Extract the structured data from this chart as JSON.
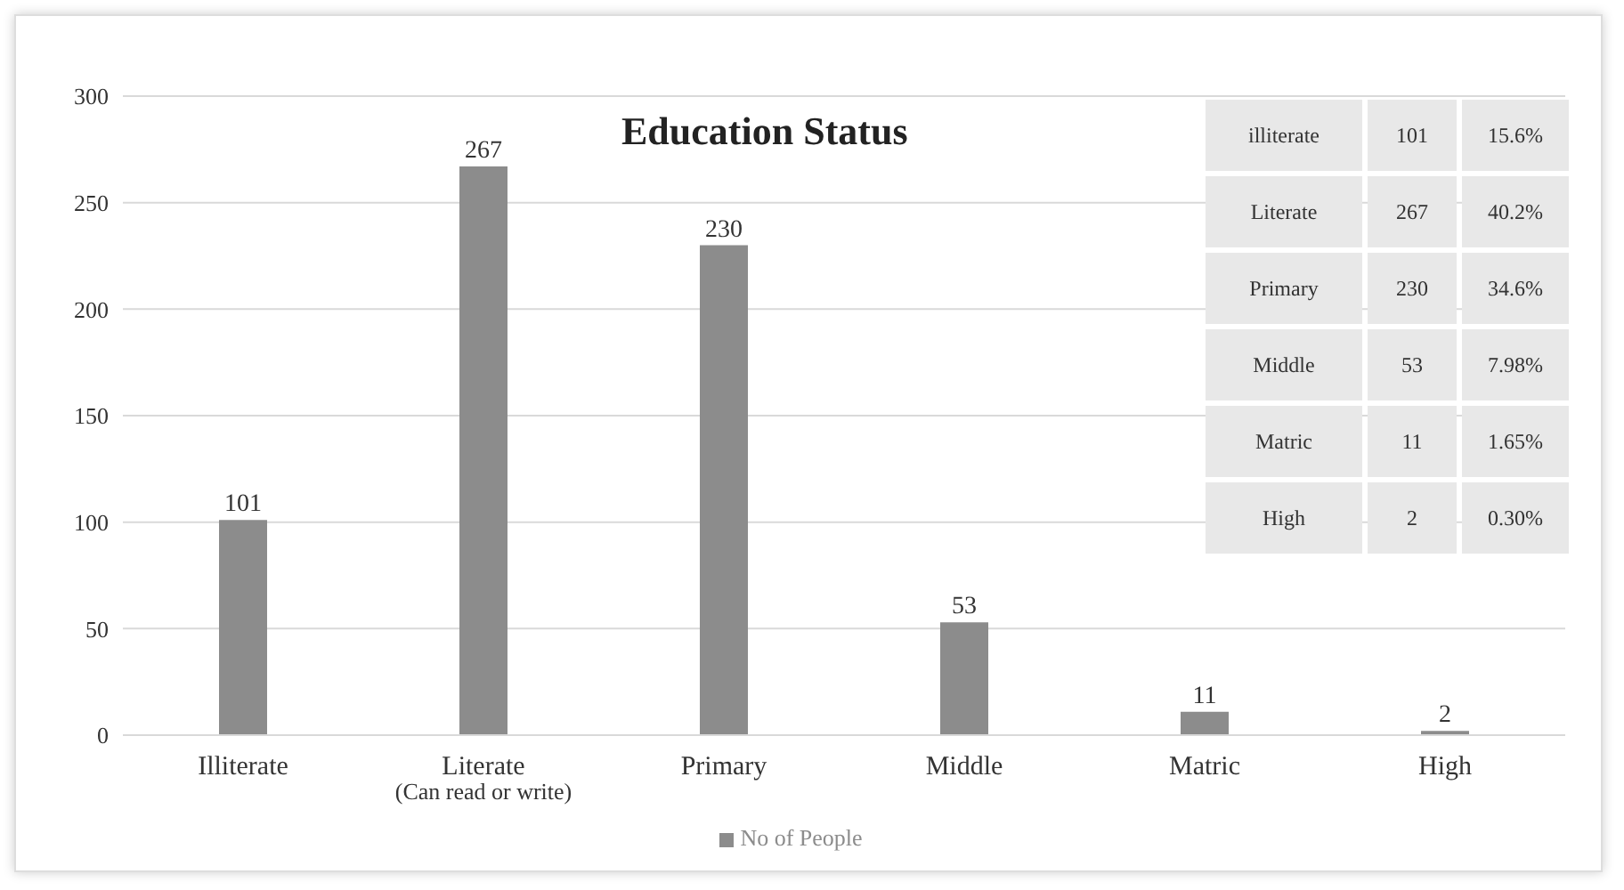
{
  "chart_data": {
    "type": "bar",
    "title": "Education Status",
    "categories": [
      "Illiterate",
      "Literate\n(Can read or write)",
      "Primary",
      "Middle",
      "Matric",
      "High"
    ],
    "series": [
      {
        "name": "No of People",
        "color": "#8c8c8c",
        "values": [
          101,
          267,
          230,
          53,
          11,
          2
        ]
      }
    ],
    "ylim": [
      0,
      300
    ],
    "yticks": [
      0,
      50,
      100,
      150,
      200,
      250,
      300
    ],
    "grid": "y",
    "legend": "bottom",
    "data_labels": true,
    "annotations": [
      "illiterate",
      "101",
      "15.6%",
      "Literate",
      "267",
      "40.2%",
      "Primary",
      "230",
      "34.6%",
      "Middle",
      "53",
      "7.98%",
      "Matric",
      "11",
      "1.65%",
      "High",
      "2",
      "0.30%"
    ]
  }
}
